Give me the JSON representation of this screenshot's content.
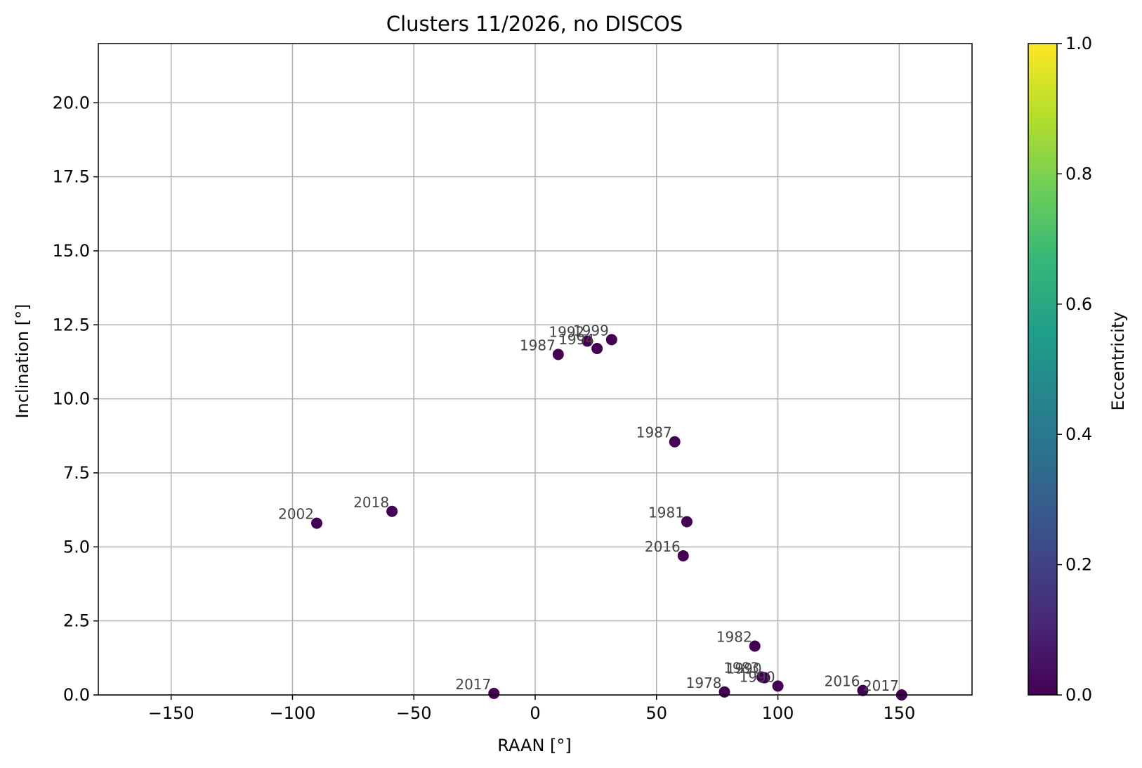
{
  "chart_data": {
    "type": "scatter",
    "title": "Clusters 11/2026, no DISCOS",
    "xlabel": "RAAN [°]",
    "ylabel": "Inclination [°]",
    "xlim": [
      -180,
      180
    ],
    "ylim": [
      0,
      22
    ],
    "x_ticks": [
      -150,
      -100,
      -50,
      0,
      50,
      100,
      150
    ],
    "x_tick_labels": [
      "−150",
      "−100",
      "−50",
      "0",
      "50",
      "100",
      "150"
    ],
    "y_ticks": [
      0,
      2.5,
      5,
      7.5,
      10,
      12.5,
      15,
      17.5,
      20
    ],
    "y_tick_labels": [
      "0.0",
      "2.5",
      "5.0",
      "7.5",
      "10.0",
      "12.5",
      "15.0",
      "17.5",
      "20.0"
    ],
    "grid": true,
    "point_color": "#440154",
    "colorbar": {
      "label": "Eccentricity",
      "range": [
        0,
        1
      ],
      "ticks": [
        0,
        0.2,
        0.4,
        0.6,
        0.8,
        1.0
      ],
      "tick_labels": [
        "0.0",
        "0.2",
        "0.4",
        "0.6",
        "0.8",
        "1.0"
      ],
      "colormap": "viridis",
      "stops": [
        "#440154",
        "#482878",
        "#3e4989",
        "#31688e",
        "#26828e",
        "#1f9e89",
        "#35b779",
        "#6ece58",
        "#b5de2b",
        "#fde725"
      ]
    },
    "points": [
      {
        "x": -90,
        "y": 5.8,
        "ecc": 0.0,
        "label": "2002"
      },
      {
        "x": -59,
        "y": 6.2,
        "ecc": 0.0,
        "label": "2018"
      },
      {
        "x": -17,
        "y": 0.05,
        "ecc": 0.0,
        "label": "2017"
      },
      {
        "x": 9.5,
        "y": 11.5,
        "ecc": 0.0,
        "label": "1987"
      },
      {
        "x": 21.5,
        "y": 11.95,
        "ecc": 0.0,
        "label": "1992"
      },
      {
        "x": 25.5,
        "y": 11.7,
        "ecc": 0.0,
        "label": "1994"
      },
      {
        "x": 31.5,
        "y": 12.0,
        "ecc": 0.0,
        "label": "1999"
      },
      {
        "x": 57.5,
        "y": 8.55,
        "ecc": 0.0,
        "label": "1987"
      },
      {
        "x": 62.5,
        "y": 5.85,
        "ecc": 0.0,
        "label": "1981"
      },
      {
        "x": 61,
        "y": 4.7,
        "ecc": 0.0,
        "label": "2016"
      },
      {
        "x": 78,
        "y": 0.1,
        "ecc": 0.0,
        "label": "1978"
      },
      {
        "x": 90.5,
        "y": 1.65,
        "ecc": 0.0,
        "label": "1982"
      },
      {
        "x": 93.5,
        "y": 0.6,
        "ecc": 0.0,
        "label": "1983"
      },
      {
        "x": 94.5,
        "y": 0.58,
        "ecc": 0.0,
        "label": "1990"
      },
      {
        "x": 100,
        "y": 0.3,
        "ecc": 0.0,
        "label": "1990"
      },
      {
        "x": 135,
        "y": 0.15,
        "ecc": 0.0,
        "label": "2016"
      },
      {
        "x": 151,
        "y": 0.0,
        "ecc": 0.0,
        "label": "2017"
      }
    ]
  }
}
